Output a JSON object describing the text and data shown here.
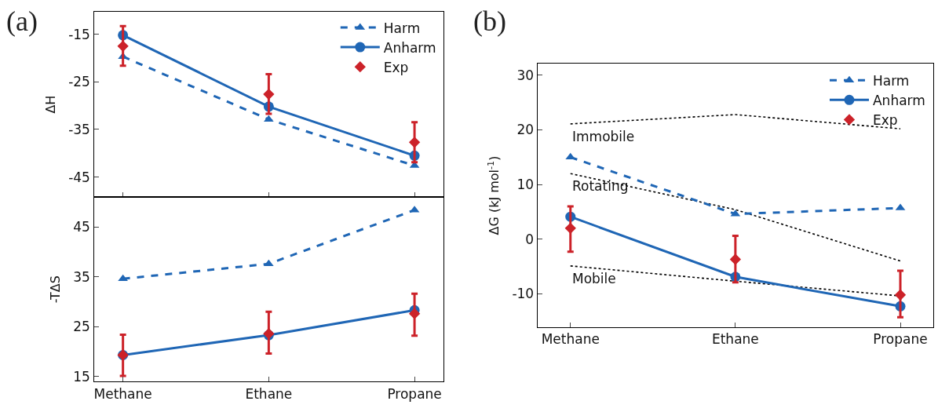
{
  "chart_data": [
    {
      "type": "line",
      "title": "(a)",
      "ylabel": "ΔH",
      "categories": [
        "Methane",
        "Ethane",
        "Propane"
      ],
      "ylim": [
        -49.2,
        -10.3
      ],
      "yticks": [
        -15,
        -25,
        -35,
        -45
      ],
      "tick_labels": "y",
      "legend": "top right",
      "grid": false,
      "series": [
        {
          "name": "Harm",
          "color": "#1f66b5",
          "values": [
            -19.7,
            -32.9,
            -42.6
          ],
          "marker": "triangle",
          "line_style": "dashed"
        },
        {
          "name": "Anharm",
          "color": "#1f66b5",
          "values": [
            -15.2,
            -30.2,
            -40.5
          ],
          "marker": "circle",
          "line_style": "solid"
        },
        {
          "name": "Exp",
          "type": "scatter",
          "color": "#cc2229",
          "values": [
            -17.5,
            -27.6,
            -37.7
          ],
          "errors": [
            [
              -21.6,
              -13.3
            ],
            [
              -31.7,
              -23.4
            ],
            [
              -41.9,
              -33.5
            ]
          ],
          "marker": "diamond"
        }
      ]
    },
    {
      "type": "line",
      "ylabel": "-TΔS",
      "categories": [
        "Methane",
        "Ethane",
        "Propane"
      ],
      "ylim": [
        14.0,
        51.0
      ],
      "yticks": [
        15,
        25,
        35,
        45
      ],
      "grid": false,
      "series": [
        {
          "color": "#1f66b5",
          "values": [
            34.6,
            37.6,
            48.4
          ],
          "marker": "triangle",
          "line_style": "dashed"
        },
        {
          "color": "#1f66b5",
          "values": [
            19.3,
            23.3,
            28.3
          ],
          "marker": "circle",
          "line_style": "solid"
        },
        {
          "type": "scatter",
          "color": "#cc2229",
          "values": [
            19.3,
            23.6,
            27.6
          ],
          "errors": [
            [
              15.1,
              23.4
            ],
            [
              19.6,
              28.0
            ],
            [
              23.2,
              31.6
            ]
          ],
          "marker": "diamond"
        }
      ]
    },
    {
      "type": "line",
      "title": "(b)",
      "ylabel": "ΔG (kJ mol$^{-1}$)",
      "categories": [
        "Methane",
        "Ethane",
        "Propane"
      ],
      "ylim": [
        -16.1,
        32.1
      ],
      "yticks": [
        -10,
        0,
        10,
        20,
        30
      ],
      "legend": "top right",
      "grid": false,
      "annotations": [
        {
          "text": "Immobile",
          "x": "Methane",
          "y": 21.1
        },
        {
          "text": "Rotating",
          "x": "Methane",
          "y": 12.0
        },
        {
          "text": "Mobile",
          "x": "Methane",
          "y": -4.9
        }
      ],
      "series": [
        {
          "color": "#000000",
          "values": [
            21.1,
            22.8,
            20.2
          ],
          "marker": "none",
          "line_style": "dotted"
        },
        {
          "color": "#000000",
          "values": [
            12.0,
            5.4,
            -4.0
          ],
          "marker": "none",
          "line_style": "dotted"
        },
        {
          "color": "#000000",
          "values": [
            -4.9,
            -7.7,
            -10.4
          ],
          "marker": "none",
          "line_style": "dotted"
        },
        {
          "name": "Harm",
          "color": "#1f66b5",
          "values": [
            15.0,
            4.6,
            5.7
          ],
          "marker": "triangle",
          "line_style": "dashed"
        },
        {
          "name": "Anharm",
          "color": "#1f66b5",
          "values": [
            4.1,
            -6.9,
            -12.3
          ],
          "marker": "circle",
          "line_style": "solid"
        },
        {
          "name": "Exp",
          "type": "scatter",
          "color": "#cc2229",
          "values": [
            2.0,
            -3.7,
            -10.2
          ],
          "errors": [
            [
              -2.3,
              6.0
            ],
            [
              -7.9,
              0.6
            ],
            [
              -14.3,
              -5.8
            ]
          ],
          "marker": "diamond"
        }
      ]
    }
  ]
}
